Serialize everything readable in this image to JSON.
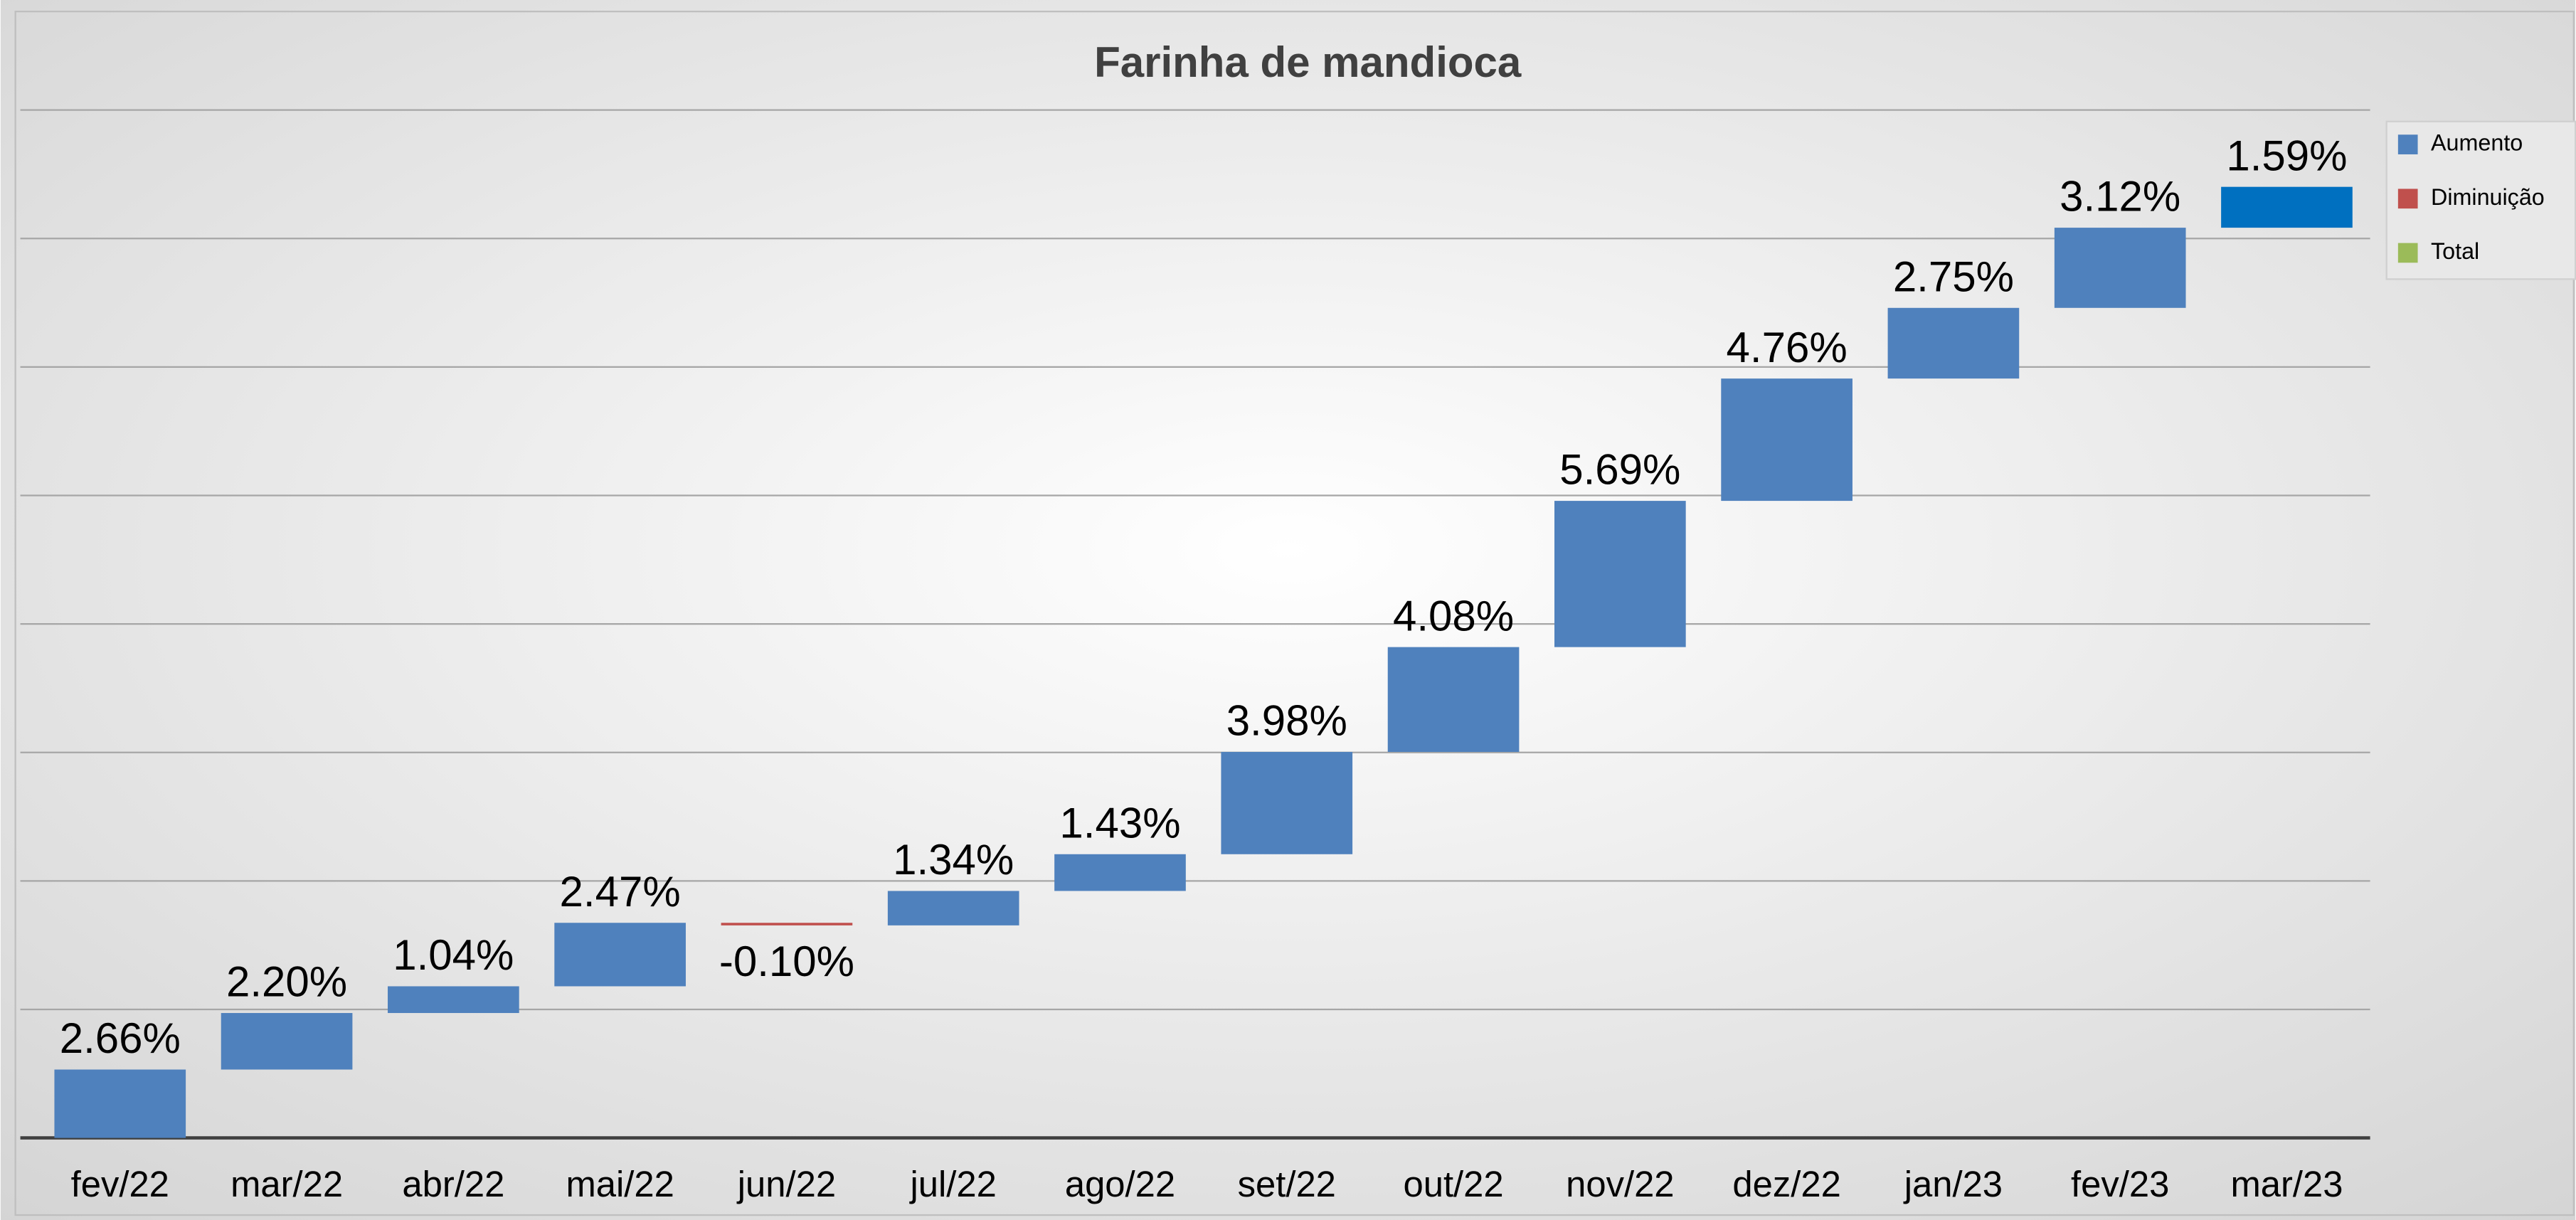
{
  "chart_data": {
    "type": "waterfall",
    "title": "Farinha de mandioca",
    "categories": [
      "fev/22",
      "mar/22",
      "abr/22",
      "mai/22",
      "jun/22",
      "jul/22",
      "ago/22",
      "set/22",
      "out/22",
      "nov/22",
      "dez/22",
      "jan/23",
      "fev/23",
      "mar/23"
    ],
    "values": [
      2.66,
      2.2,
      1.04,
      2.47,
      -0.1,
      1.34,
      1.43,
      3.98,
      4.08,
      5.69,
      4.76,
      2.75,
      3.12,
      1.59
    ],
    "value_labels": [
      "2.66%",
      "2.20%",
      "1.04%",
      "2.47%",
      "-0.10%",
      "1.34%",
      "1.43%",
      "3.98%",
      "4.08%",
      "5.69%",
      "4.76%",
      "2.75%",
      "3.12%",
      "1.59%"
    ],
    "colors": [
      "#4f81bd",
      "#4f81bd",
      "#4f81bd",
      "#4f81bd",
      "#c0504d",
      "#4f81bd",
      "#4f81bd",
      "#4f81bd",
      "#4f81bd",
      "#4f81bd",
      "#4f81bd",
      "#4f81bd",
      "#4f81bd",
      "#0070c0"
    ],
    "legend": [
      {
        "name": "Aumento",
        "color": "#4f81bd"
      },
      {
        "name": "Diminuição",
        "color": "#c0504d"
      },
      {
        "name": "Total",
        "color": "#9bbb59"
      }
    ],
    "legend_position": "right",
    "ylim": [
      0,
      40
    ],
    "yticks": [
      0,
      5,
      10,
      15,
      20,
      25,
      30,
      35,
      40
    ],
    "grid": true
  }
}
